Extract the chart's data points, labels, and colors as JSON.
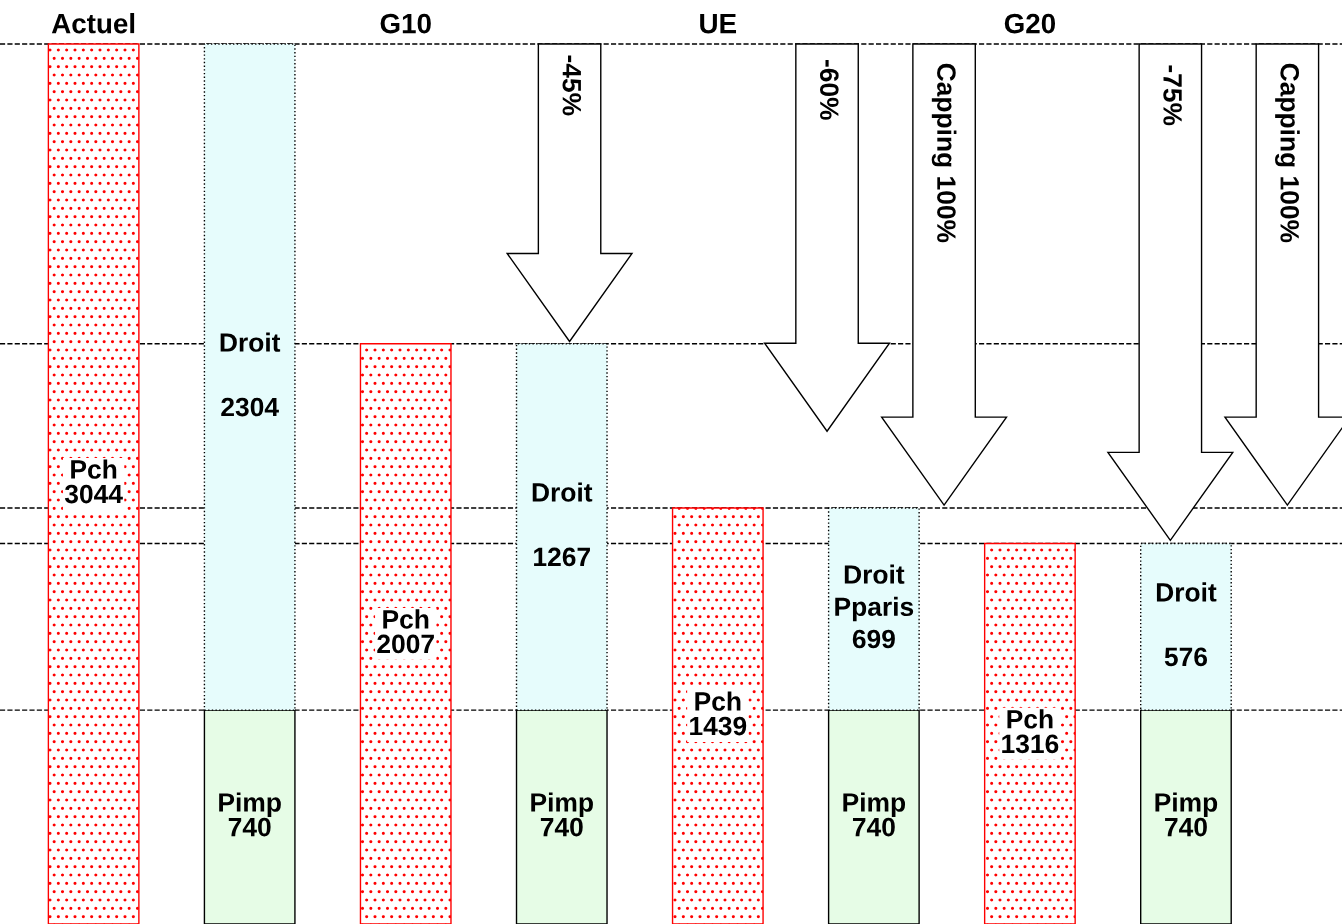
{
  "chart_data": {
    "type": "bar",
    "stacked": true,
    "categories": [
      "Actuel",
      null,
      "G10",
      null,
      "UE",
      null,
      "G20",
      null
    ],
    "series": [
      {
        "name": "Pch",
        "color": "#ff0000",
        "values": [
          3044,
          null,
          2007,
          null,
          1439,
          null,
          1316,
          null
        ],
        "value_labels": [
          "3044",
          null,
          "2007",
          null,
          "1439",
          null,
          "1316",
          null
        ]
      },
      {
        "name": "Pimp",
        "color": "#e6fce6",
        "values": [
          null,
          740,
          null,
          740,
          null,
          740,
          null,
          740
        ],
        "value_labels": [
          null,
          "740",
          null,
          "740",
          null,
          "740",
          null,
          "740"
        ]
      },
      {
        "name": "Droit",
        "color": "#e6fcfc",
        "values": [
          null,
          2304,
          null,
          1267,
          null,
          699,
          null,
          576
        ],
        "value_labels": [
          null,
          "\n2304",
          null,
          "\n1267",
          null,
          "Pparis\n699",
          null,
          "\n576"
        ]
      }
    ],
    "annotations": [
      "-45%",
      "-60%",
      "Capping 100%",
      "-75%",
      "Capping 100%"
    ],
    "ref_lines": [
      {
        "axis": "y",
        "value": 3044,
        "line_style": "dashed"
      },
      {
        "axis": "y",
        "value": 740,
        "line_style": "dashed"
      },
      {
        "axis": "y",
        "value": 2007,
        "line_style": "dashed"
      },
      {
        "axis": "y",
        "value": 1439,
        "line_style": "dashed"
      },
      {
        "axis": "y",
        "value": 1316,
        "line_style": "dashed"
      }
    ],
    "grid": false,
    "legend": false
  }
}
